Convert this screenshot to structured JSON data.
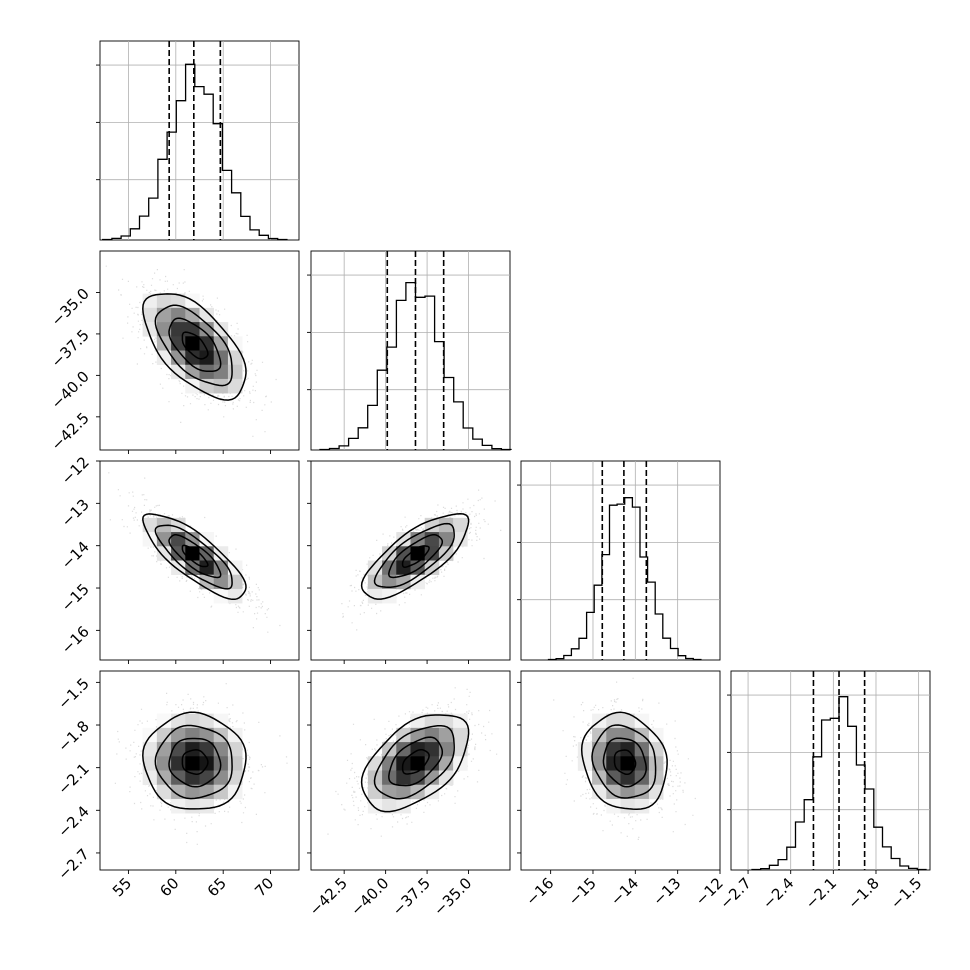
{
  "chart_data": {
    "type": "corner",
    "params": [
      {
        "range": [
          52,
          73
        ],
        "ticks": [
          "55",
          "60",
          "65",
          "70"
        ],
        "mean": 62,
        "sd": 2.7,
        "quantiles": [
          59.3,
          61.9,
          64.7
        ]
      },
      {
        "range": [
          -44.5,
          -32.5
        ],
        "ticks": [
          "-42.5",
          "-40.0",
          "-37.5",
          "-35.0"
        ],
        "mean": -38.2,
        "sd": 1.6,
        "quantiles": [
          -39.9,
          -38.2,
          -36.5
        ]
      },
      {
        "range": [
          -16.7,
          -12.0
        ],
        "ticks": [
          "-16",
          "-15",
          "-14",
          "-13",
          "-12"
        ],
        "mean": -14.25,
        "sd": 0.5,
        "quantiles": [
          -14.78,
          -14.27,
          -13.74
        ]
      },
      {
        "range": [
          -2.82,
          -1.42
        ],
        "ticks": [
          "-2.7",
          "-2.4",
          "-2.1",
          "-1.8",
          "-1.5"
        ],
        "mean": -2.06,
        "sd": 0.17,
        "quantiles": [
          -2.24,
          -2.06,
          -1.88
        ]
      }
    ],
    "correlations": {
      "1-0": -0.6,
      "2-0": -0.8,
      "2-1": 0.75,
      "3-0": -0.03,
      "3-1": 0.5,
      "3-2": -0.15
    },
    "histogram_style": "step",
    "grid": true,
    "quantile_lines": "dashed"
  }
}
